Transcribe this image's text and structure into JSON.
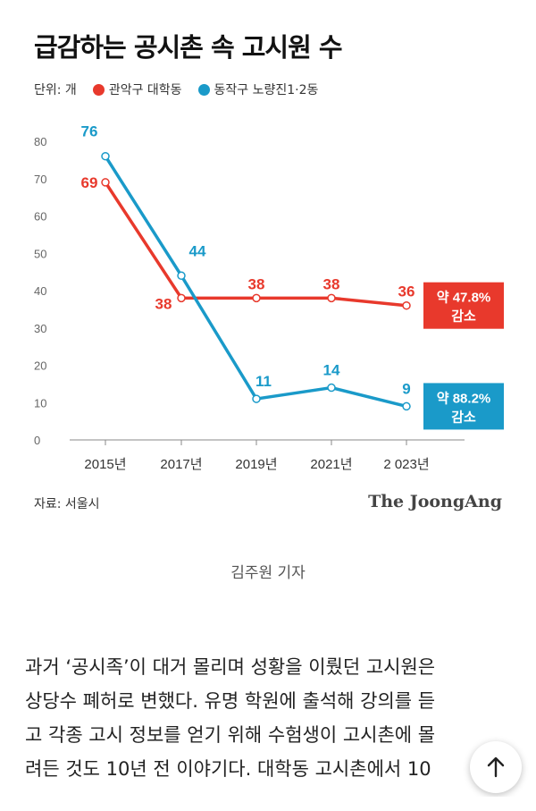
{
  "article": {
    "title": "급감하는 공시촌 속 고시원 수",
    "unit_label": "단위: 개",
    "legend": [
      {
        "label": "관악구 대학동",
        "color": "#e8392c"
      },
      {
        "label": "동작구 노량진1·2동",
        "color": "#1a9ac9"
      }
    ],
    "source": "자료: 서울시",
    "brand": "The JoongAng",
    "caption": "김주원 기자",
    "body_lines": [
      "과거 ‘공시족’이 대거 몰리며 성황을 이뤘던 고시원은",
      "상당수 폐허로 변했다. 유명 학원에 출석해 강의를 듣",
      "고 각종 고시 정보를 얻기 위해 수험생이 고시촌에 몰",
      "려든 것도 10년 전 이야기다. 대학동 고시촌에서 10"
    ]
  },
  "chart_data": {
    "type": "line",
    "title": "급감하는 공시촌 속 고시원 수",
    "x": [
      "2015년",
      "2017년",
      "2019년",
      "2021년",
      "2 023년"
    ],
    "ylim": [
      0,
      80
    ],
    "yticks": [
      "0",
      "10",
      "20",
      "30",
      "40",
      "50",
      "60",
      "70",
      "80"
    ],
    "grid": false,
    "series": [
      {
        "name": "관악구 대학동",
        "color": "#e8392c",
        "values": [
          69,
          38,
          38,
          38,
          36
        ],
        "labels": [
          "69",
          "38",
          "38",
          "38",
          "36"
        ],
        "badge": [
          "약 47.8%",
          "감소"
        ]
      },
      {
        "name": "동작구 노량진1·2동",
        "color": "#1a9ac9",
        "values": [
          76,
          44,
          11,
          14,
          9
        ],
        "labels": [
          "76",
          "44",
          "11",
          "14",
          "9"
        ],
        "badge": [
          "약 88.2%",
          "감소"
        ]
      }
    ]
  },
  "ui": {
    "scroll_top_icon": "arrow-up-icon"
  }
}
